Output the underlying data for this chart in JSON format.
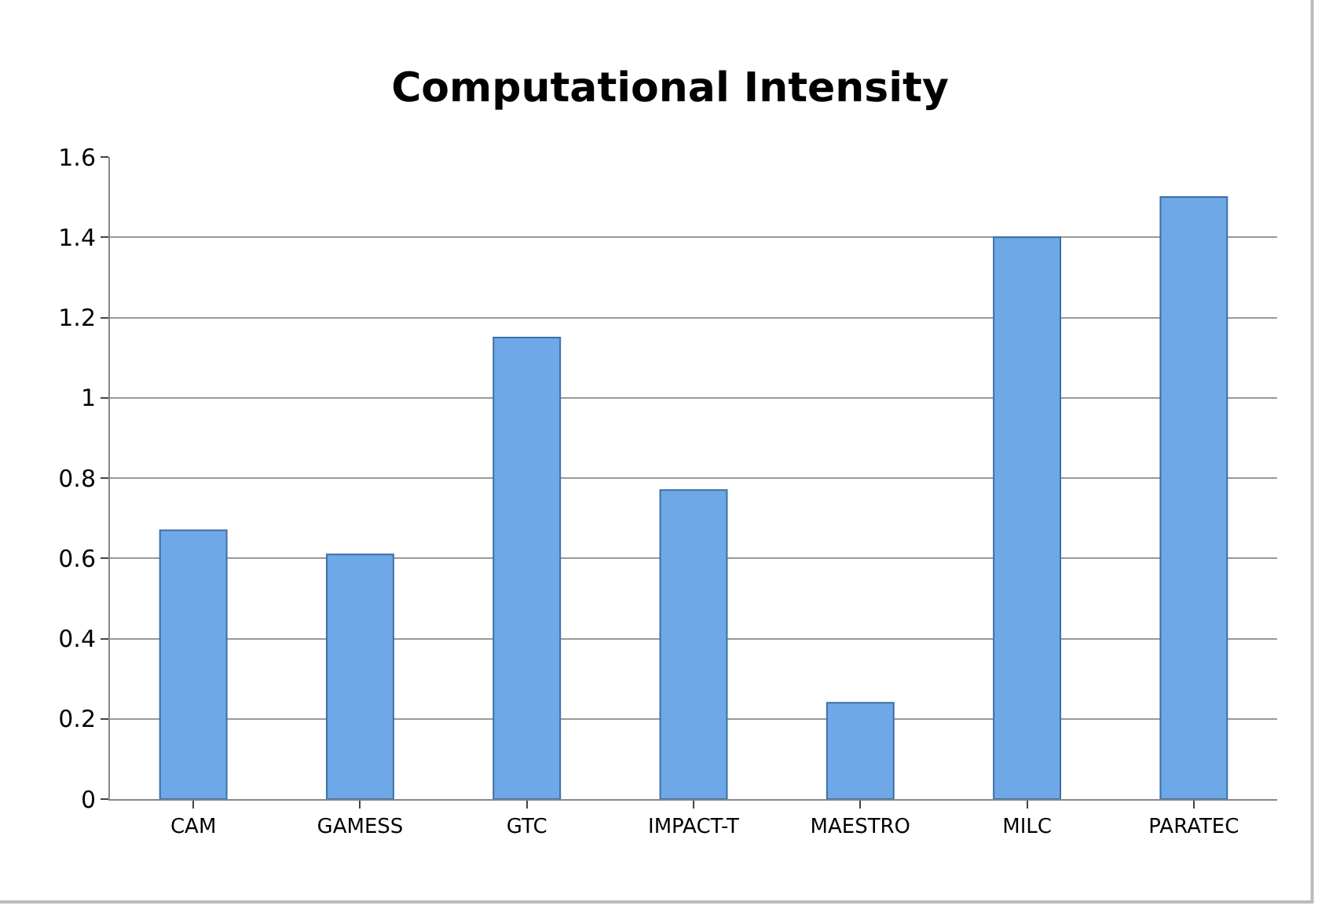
{
  "chart_data": {
    "type": "bar",
    "title": "Computational Intensity",
    "categories": [
      "CAM",
      "GAMESS",
      "GTC",
      "IMPACT-T",
      "MAESTRO",
      "MILC",
      "PARATEC"
    ],
    "values": [
      0.67,
      0.61,
      1.15,
      0.77,
      0.24,
      1.4,
      1.5
    ],
    "color": "#6fa8e6",
    "ylim": [
      0,
      1.6
    ],
    "yticks": [
      0,
      0.2,
      0.4,
      0.6,
      0.8,
      1,
      1.2,
      1.4,
      1.6
    ],
    "grid": "y"
  }
}
